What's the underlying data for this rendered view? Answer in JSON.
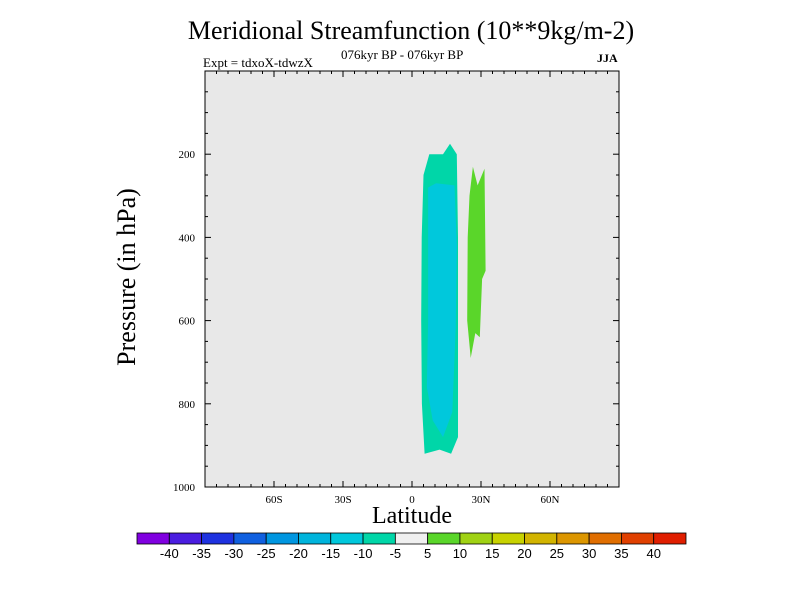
{
  "chart_data": {
    "type": "contour",
    "title": "Meridional Streamfunction (10**9kg/m-2)",
    "subtitle": "076kyr BP - 076kyr BP",
    "experiment": "Expt = tdxoX-tdwzX",
    "season": "JJA",
    "xlabel": "Latitude",
    "ylabel": "Pressure (in hPa)",
    "xlim": [
      -90,
      90
    ],
    "ylim": [
      0,
      1000
    ],
    "y_inverted": true,
    "x_ticks": [
      {
        "value": -60,
        "label": "60S"
      },
      {
        "value": -30,
        "label": "30S"
      },
      {
        "value": 0,
        "label": "0"
      },
      {
        "value": 30,
        "label": "30N"
      },
      {
        "value": 60,
        "label": "60N"
      }
    ],
    "y_ticks": [
      {
        "value": 200,
        "label": "200"
      },
      {
        "value": 400,
        "label": "400"
      },
      {
        "value": 600,
        "label": "600"
      },
      {
        "value": 800,
        "label": "800"
      },
      {
        "value": 1000,
        "label": "1000"
      }
    ],
    "background_color": "#e8e8e8",
    "regions": [
      {
        "band": "-10 to -5",
        "color": "#00d6a8",
        "polygon": [
          [
            5.5,
            920
          ],
          [
            4.3,
            800
          ],
          [
            4.0,
            600
          ],
          [
            4.2,
            400
          ],
          [
            5.0,
            250
          ],
          [
            7.5,
            200
          ],
          [
            13.5,
            200
          ],
          [
            16.5,
            175
          ],
          [
            19.5,
            200
          ],
          [
            20.0,
            400
          ],
          [
            20.0,
            880
          ],
          [
            17.0,
            920
          ],
          [
            12.0,
            910
          ]
        ]
      },
      {
        "band": "-15 to -10",
        "color": "#00c8dc",
        "polygon": [
          [
            9.0,
            840
          ],
          [
            6.5,
            760
          ],
          [
            7.0,
            600
          ],
          [
            7.0,
            400
          ],
          [
            7.0,
            280
          ],
          [
            10.5,
            270
          ],
          [
            18.5,
            275
          ],
          [
            19.5,
            420
          ],
          [
            19.0,
            620
          ],
          [
            17.5,
            820
          ],
          [
            13.5,
            880
          ]
        ]
      },
      {
        "band": "5 to 10",
        "color": "#5ad62a",
        "polygon": [
          [
            25.5,
            690
          ],
          [
            24.0,
            600
          ],
          [
            24.2,
            400
          ],
          [
            25.0,
            300
          ],
          [
            26.5,
            230
          ],
          [
            28.5,
            275
          ],
          [
            31.5,
            235
          ],
          [
            32.0,
            480
          ],
          [
            30.5,
            500
          ],
          [
            29.5,
            640
          ],
          [
            27.5,
            630
          ]
        ]
      }
    ],
    "colorbar": {
      "labels": [
        "-40",
        "-35",
        "-30",
        "-25",
        "-20",
        "-15",
        "-10",
        "-5",
        "5",
        "10",
        "15",
        "20",
        "25",
        "30",
        "35",
        "40"
      ],
      "colors": [
        "#8000e0",
        "#4a1de0",
        "#1e32e0",
        "#1060e0",
        "#0096e0",
        "#00b4dc",
        "#00c8dc",
        "#00d6a8",
        "#f0f0f0",
        "#5ad62a",
        "#a0d214",
        "#c8d200",
        "#d2b400",
        "#dc9600",
        "#e06e00",
        "#e04000",
        "#e01e00"
      ]
    }
  }
}
